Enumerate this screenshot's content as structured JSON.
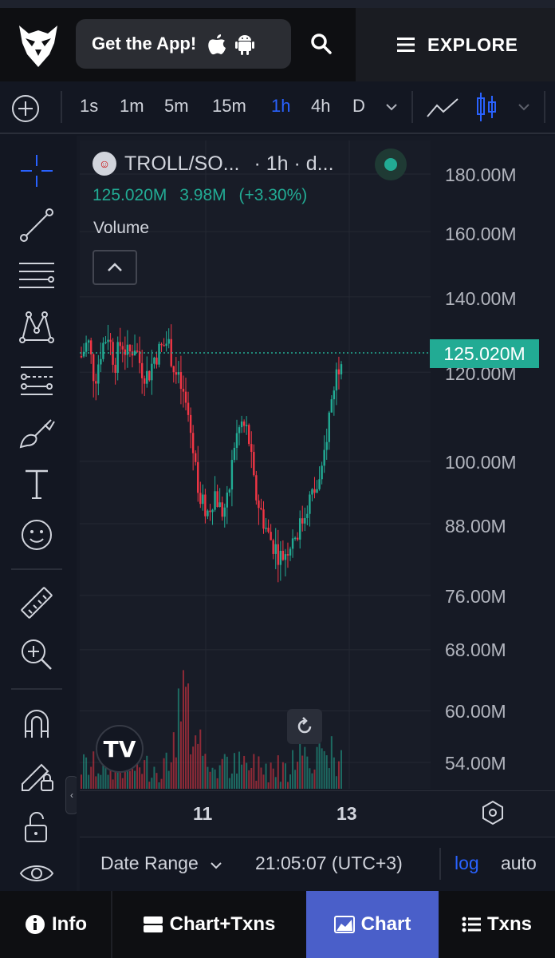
{
  "header": {
    "get_app_label": "Get the App!",
    "explore_label": "EXPLORE"
  },
  "toolbar": {
    "timeframes": [
      "1s",
      "1m",
      "5m",
      "15m",
      "1h",
      "4h",
      "D"
    ],
    "active_timeframe": "1h"
  },
  "legend": {
    "pair": "TROLL/SO...",
    "meta": "· 1h · d...",
    "price": "125.020M",
    "change": "3.98M",
    "change_pct": "(+3.30%)",
    "volume_label": "Volume"
  },
  "price_axis": [
    "180.00M",
    "160.00M",
    "140.00M",
    "120.00M",
    "100.00M",
    "88.00M",
    "76.00M",
    "68.00M",
    "60.00M",
    "54.00M"
  ],
  "current_price_tag": "125.020M",
  "time_axis": [
    "11",
    "13"
  ],
  "bottom_strip": {
    "date_range": "Date Range",
    "clock": "21:05:07 (UTC+3)",
    "log": "log",
    "auto": "auto"
  },
  "bottom_nav": {
    "info": "Info",
    "chart_txns": "Chart+Txns",
    "chart": "Chart",
    "txns": "Txns"
  },
  "colors": {
    "up": "#22ab94",
    "down": "#f23645",
    "accent": "#2962ff",
    "nav_active": "#4a5fc9"
  },
  "chart_data": {
    "type": "candlestick",
    "title": "TROLL/SO... · 1h",
    "x_ticks": [
      "11",
      "13"
    ],
    "y_scale": "log",
    "y_ticks": [
      "180.00M",
      "160.00M",
      "140.00M",
      "120.00M",
      "100.00M",
      "88.00M",
      "76.00M",
      "68.00M",
      "60.00M",
      "54.00M"
    ],
    "last_price": "125.020M",
    "close_path": [
      124,
      128,
      118,
      126,
      130,
      122,
      128,
      124,
      127,
      121,
      119,
      124,
      126,
      128,
      120,
      116,
      110,
      100,
      92,
      90,
      94,
      90,
      92,
      104,
      108,
      106,
      94,
      90,
      86,
      84,
      82,
      84,
      86,
      88,
      92,
      94,
      96,
      108,
      118,
      125
    ]
  }
}
